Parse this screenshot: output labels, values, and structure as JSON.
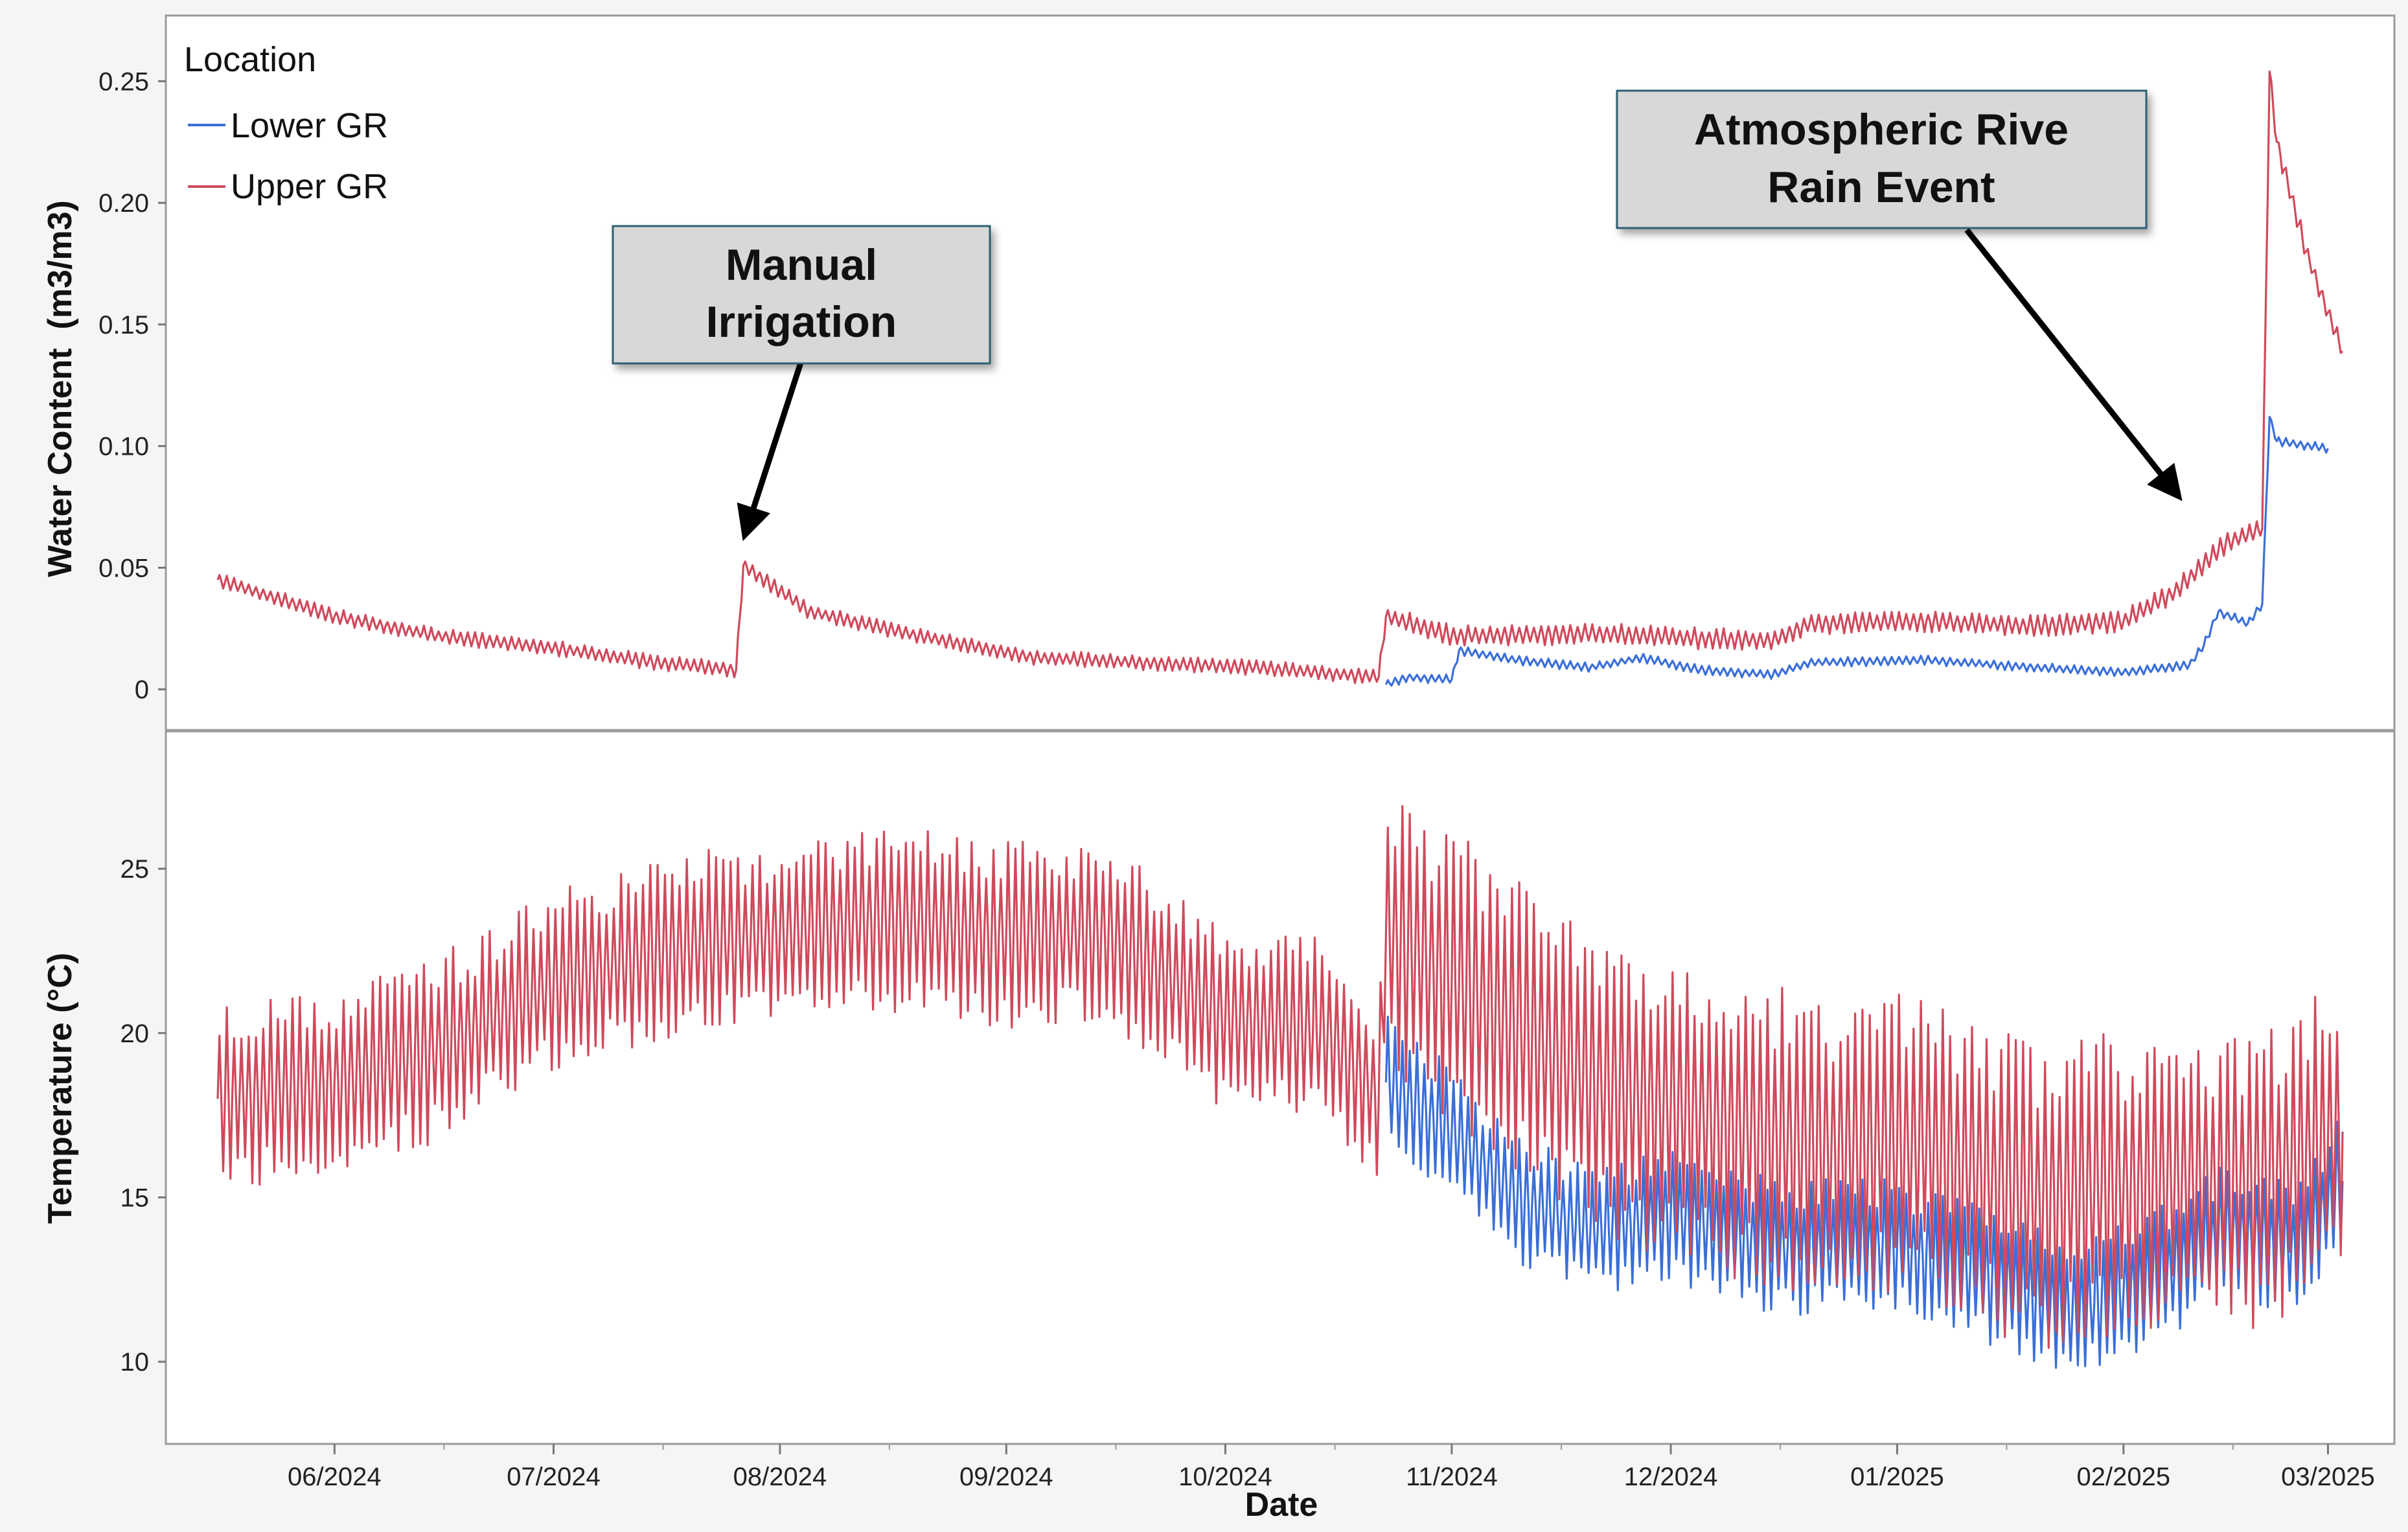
{
  "chart_data": {
    "type": "line",
    "xlabel": "Date",
    "x_ticks": [
      "06/2024",
      "07/2024",
      "08/2024",
      "09/2024",
      "10/2024",
      "11/2024",
      "12/2024",
      "01/2025",
      "02/2025",
      "03/2025"
    ],
    "x_range": [
      "2024-05-16",
      "2025-03-03"
    ],
    "legend": {
      "title": "Location",
      "placement": "top-left"
    },
    "series_legend": [
      {
        "name": "Lower GR",
        "color": "#3b6fd8"
      },
      {
        "name": "Upper GR",
        "color": "#cf4a5c"
      }
    ],
    "panels": [
      {
        "ylabel": "Water Content  (m3/m3)",
        "ylim": [
          -0.017,
          0.277
        ],
        "y_ticks": [
          "0",
          "0.05",
          "0.10",
          "0.15",
          "0.20",
          "0.25"
        ],
        "y_tick_values": [
          0,
          0.05,
          0.1,
          0.15,
          0.2,
          0.25
        ],
        "series": [
          {
            "name": "Lower GR",
            "color": "#3b6fd8",
            "points": [
              [
                "2024-10-23",
                0.002
              ],
              [
                "2024-10-26",
                0.005
              ],
              [
                "2024-11-01",
                0.004
              ],
              [
                "2024-11-02",
                0.016
              ],
              [
                "2024-11-10",
                0.012
              ],
              [
                "2024-11-20",
                0.009
              ],
              [
                "2024-11-27",
                0.013
              ],
              [
                "2024-12-05",
                0.008
              ],
              [
                "2024-12-15",
                0.006
              ],
              [
                "2024-12-20",
                0.011
              ],
              [
                "2025-01-05",
                0.012
              ],
              [
                "2025-01-20",
                0.009
              ],
              [
                "2025-02-01",
                0.007
              ],
              [
                "2025-02-10",
                0.01
              ],
              [
                "2025-02-12",
                0.018
              ],
              [
                "2025-02-14",
                0.032
              ],
              [
                "2025-02-18",
                0.027
              ],
              [
                "2025-02-20",
                0.035
              ],
              [
                "2025-02-21",
                0.112
              ],
              [
                "2025-02-22",
                0.102
              ],
              [
                "2025-03-01",
                0.099
              ]
            ]
          },
          {
            "name": "Upper GR",
            "color": "#cf4a5c",
            "points": [
              [
                "2024-05-16",
                0.045
              ],
              [
                "2024-06-01",
                0.03
              ],
              [
                "2024-06-15",
                0.022
              ],
              [
                "2024-07-01",
                0.017
              ],
              [
                "2024-07-15",
                0.011
              ],
              [
                "2024-07-26",
                0.008
              ],
              [
                "2024-07-27",
                0.051
              ],
              [
                "2024-08-05",
                0.032
              ],
              [
                "2024-08-20",
                0.022
              ],
              [
                "2024-09-05",
                0.013
              ],
              [
                "2024-09-20",
                0.011
              ],
              [
                "2024-10-05",
                0.009
              ],
              [
                "2024-10-22",
                0.005
              ],
              [
                "2024-10-23",
                0.03
              ],
              [
                "2024-11-01",
                0.022
              ],
              [
                "2024-11-20",
                0.023
              ],
              [
                "2024-12-05",
                0.021
              ],
              [
                "2024-12-15",
                0.02
              ],
              [
                "2024-12-20",
                0.027
              ],
              [
                "2025-01-05",
                0.028
              ],
              [
                "2025-01-20",
                0.026
              ],
              [
                "2025-02-01",
                0.028
              ],
              [
                "2025-02-08",
                0.04
              ],
              [
                "2025-02-15",
                0.06
              ],
              [
                "2025-02-20",
                0.066
              ],
              [
                "2025-02-21",
                0.254
              ],
              [
                "2025-02-22",
                0.225
              ],
              [
                "2025-02-26",
                0.18
              ],
              [
                "2025-03-01",
                0.155
              ],
              [
                "2025-03-03",
                0.139
              ]
            ]
          }
        ]
      },
      {
        "ylabel": "Temperature (°C)",
        "ylim": [
          7.5,
          29.2
        ],
        "y_ticks": [
          "10",
          "15",
          "20",
          "25"
        ],
        "y_tick_values": [
          10,
          15,
          20,
          25
        ],
        "series": [
          {
            "name": "Lower GR",
            "color": "#3b6fd8",
            "points": [
              [
                "2024-10-23",
                18.5
              ],
              [
                "2024-11-01",
                17.0
              ],
              [
                "2024-11-10",
                15.0
              ],
              [
                "2024-11-20",
                14.0
              ],
              [
                "2024-12-01",
                14.5
              ],
              [
                "2024-12-15",
                13.5
              ],
              [
                "2025-01-01",
                13.5
              ],
              [
                "2025-01-15",
                12.5
              ],
              [
                "2025-01-25",
                11.5
              ],
              [
                "2025-02-05",
                12.5
              ],
              [
                "2025-02-15",
                14.0
              ],
              [
                "2025-02-25",
                13.5
              ],
              [
                "2025-03-03",
                15.5
              ]
            ]
          },
          {
            "name": "Upper GR",
            "color": "#cf4a5c",
            "points": [
              [
                "2024-05-16",
                18.0
              ],
              [
                "2024-06-01",
                18.5
              ],
              [
                "2024-06-15",
                19.5
              ],
              [
                "2024-07-01",
                21.5
              ],
              [
                "2024-07-15",
                22.5
              ],
              [
                "2024-08-01",
                23.0
              ],
              [
                "2024-08-15",
                23.5
              ],
              [
                "2024-09-01",
                23.0
              ],
              [
                "2024-09-15",
                23.0
              ],
              [
                "2024-10-01",
                20.5
              ],
              [
                "2024-10-15",
                20.0
              ],
              [
                "2024-10-22",
                18.0
              ],
              [
                "2024-10-23",
                23.0
              ],
              [
                "2024-11-05",
                21.0
              ],
              [
                "2024-11-20",
                18.5
              ],
              [
                "2024-12-05",
                17.5
              ],
              [
                "2024-12-20",
                16.5
              ],
              [
                "2025-01-05",
                16.5
              ],
              [
                "2025-01-20",
                15.0
              ],
              [
                "2025-02-05",
                15.5
              ],
              [
                "2025-02-20",
                15.5
              ],
              [
                "2025-03-03",
                17.0
              ]
            ]
          }
        ]
      }
    ],
    "annotations": [
      {
        "lines": [
          "Manual",
          "Irrigation"
        ],
        "target": [
          "2024-07-27",
          0.051
        ],
        "panel": 0
      },
      {
        "lines": [
          "Atmospheric Rive",
          "Rain Event"
        ],
        "target": [
          "2025-02-17",
          0.075
        ],
        "panel": 0
      }
    ]
  }
}
